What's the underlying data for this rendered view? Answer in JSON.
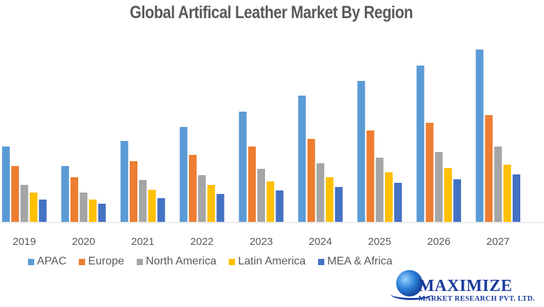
{
  "chart_data": {
    "type": "bar",
    "title": "Global Artifical Leather Market By Region",
    "xlabel": "",
    "ylabel": "",
    "categories": [
      "2019",
      "2020",
      "2021",
      "2022",
      "2023",
      "2024",
      "2025",
      "2026",
      "2027"
    ],
    "series": [
      {
        "name": "APAC",
        "color": "#5b9bd5",
        "values": [
          108,
          80,
          116,
          136,
          158,
          181,
          202,
          224,
          247
        ]
      },
      {
        "name": "Europe",
        "color": "#ed7d31",
        "values": [
          80,
          64,
          87,
          96,
          108,
          119,
          131,
          142,
          153
        ]
      },
      {
        "name": "North America",
        "color": "#a5a5a5",
        "values": [
          53,
          42,
          60,
          67,
          76,
          84,
          92,
          100,
          108
        ]
      },
      {
        "name": "Latin America",
        "color": "#ffc000",
        "values": [
          42,
          32,
          46,
          53,
          58,
          64,
          71,
          77,
          82
        ]
      },
      {
        "name": "MEA & Africa",
        "color": "#4472c4",
        "values": [
          32,
          26,
          34,
          40,
          45,
          50,
          56,
          61,
          68
        ]
      }
    ],
    "ylim": [
      0,
      250
    ],
    "value_units": "relative (no y-axis shown)",
    "grid": false,
    "legend_position": "bottom"
  },
  "branding": {
    "logo_name": "MAXIMIZE",
    "logo_subtitle": "MARKET RESEARCH PVT. LTD.",
    "logo_icon": "globe-icon"
  }
}
